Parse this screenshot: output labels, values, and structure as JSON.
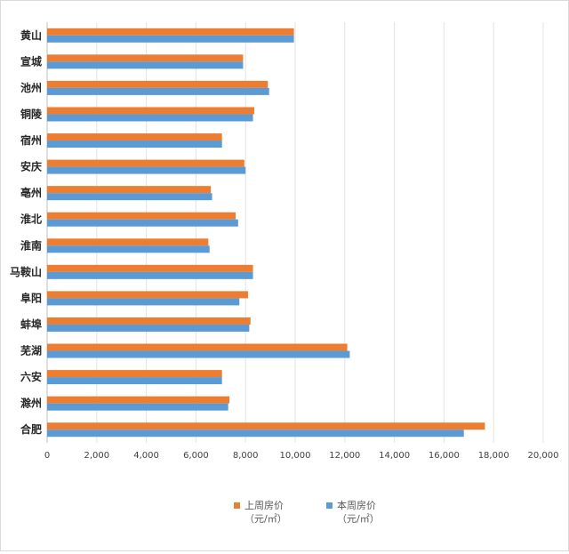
{
  "chart_data": {
    "type": "bar",
    "orientation": "horizontal",
    "categories": [
      "黄山",
      "宣城",
      "池州",
      "铜陵",
      "宿州",
      "安庆",
      "亳州",
      "淮北",
      "淮南",
      "马鞍山",
      "阜阳",
      "蚌埠",
      "芜湖",
      "六安",
      "滁州",
      "合肥"
    ],
    "series": [
      {
        "name": "上周房价",
        "unit": "（元/㎡）",
        "color": "#ED7D31",
        "values": [
          9950,
          7900,
          8900,
          8350,
          7050,
          7950,
          6600,
          7600,
          6500,
          8300,
          8100,
          8200,
          12100,
          7050,
          7350,
          17650
        ]
      },
      {
        "name": "本周房价",
        "unit": "（元/㎡）",
        "color": "#5B9BD5",
        "values": [
          9950,
          7900,
          8950,
          8300,
          7050,
          8000,
          6650,
          7700,
          6550,
          8300,
          7750,
          8150,
          12200,
          7050,
          7300,
          16800
        ]
      }
    ],
    "xlim": [
      0,
      20000
    ],
    "xticks": [
      0,
      2000,
      4000,
      6000,
      8000,
      10000,
      12000,
      14000,
      16000,
      18000,
      20000
    ],
    "xtick_labels": [
      "0",
      "2,000",
      "4,000",
      "6,000",
      "8,000",
      "10,000",
      "12,000",
      "14,000",
      "16,000",
      "18,000",
      "20,000"
    ],
    "grid": true,
    "legend_position": "bottom"
  }
}
